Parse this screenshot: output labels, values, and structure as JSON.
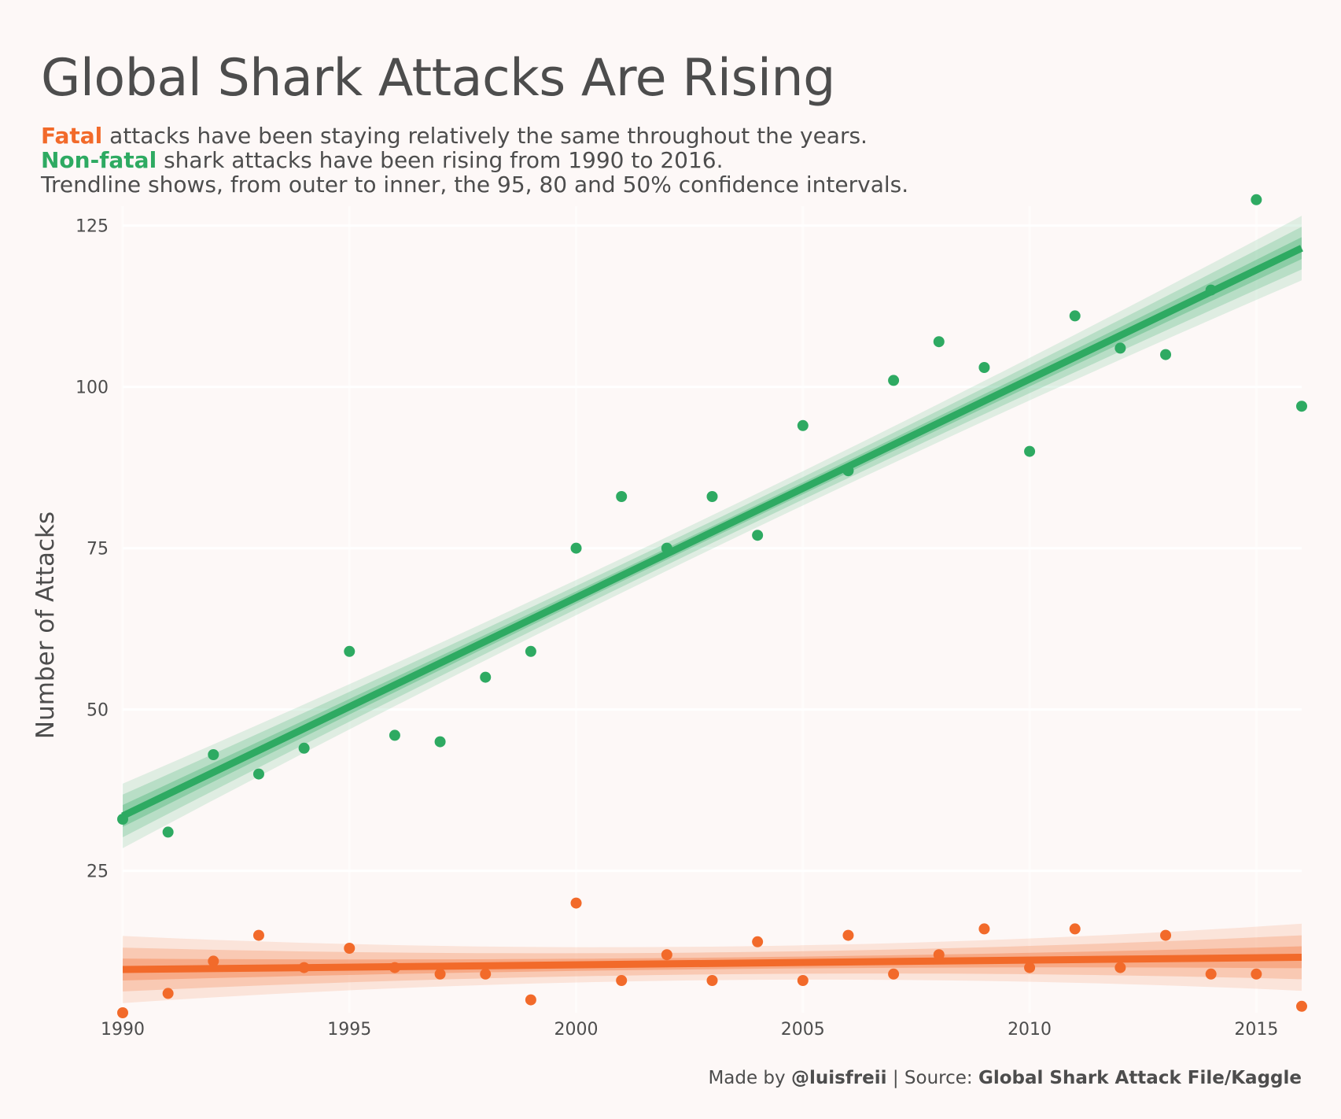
{
  "title": "Global Shark Attacks Are Rising",
  "subtitle": {
    "line1_highlight": "Fatal",
    "line1_rest": " attacks have been staying relatively the same throughout the years.",
    "line2_highlight": "Non-fatal",
    "line2_rest": " shark attacks have been rising from 1990 to 2016.",
    "line3": "Trendline shows, from outer to inner, the 95, 80 and 50% confidence intervals."
  },
  "caption": {
    "made_by_label": "Made by ",
    "author": "@luisfreii",
    "separator": " | Source: ",
    "source": "Global Shark Attack File/Kaggle"
  },
  "colors": {
    "background": "#fdf8f7",
    "fatal": "#f26a2a",
    "nonfatal": "#2eaa62",
    "text": "#4d4d4d",
    "grid": "#ffffff"
  },
  "chart_data": {
    "type": "scatter",
    "ylabel": "Number of Attacks",
    "xlabel": "",
    "xlim": [
      1990,
      2016
    ],
    "ylim": [
      3,
      128
    ],
    "x_ticks": [
      1990,
      1995,
      2000,
      2005,
      2010,
      2015
    ],
    "y_ticks": [
      25,
      50,
      75,
      100,
      125
    ],
    "grid": true,
    "legend": "none (colored subtitle words)",
    "x": [
      1990,
      1991,
      1992,
      1993,
      1994,
      1995,
      1996,
      1997,
      1998,
      1999,
      2000,
      2001,
      2002,
      2003,
      2004,
      2005,
      2006,
      2007,
      2008,
      2009,
      2010,
      2011,
      2012,
      2013,
      2014,
      2015,
      2016
    ],
    "series": [
      {
        "name": "Non-fatal",
        "values": [
          33,
          31,
          43,
          40,
          44,
          59,
          46,
          45,
          55,
          59,
          75,
          83,
          75,
          83,
          77,
          94,
          87,
          101,
          107,
          103,
          90,
          111,
          106,
          105,
          115,
          129,
          97
        ],
        "trend": {
          "start": 33.5,
          "end": 121.5
        },
        "intervals": [
          {
            "level": "95%",
            "start_halfwidth": 5.0,
            "mid_halfwidth": 2.6,
            "end_halfwidth": 5.0
          },
          {
            "level": "80%",
            "start_halfwidth": 3.3,
            "mid_halfwidth": 1.7,
            "end_halfwidth": 3.3
          },
          {
            "level": "50%",
            "start_halfwidth": 1.7,
            "mid_halfwidth": 0.9,
            "end_halfwidth": 1.7
          }
        ]
      },
      {
        "name": "Fatal",
        "values": [
          3,
          6,
          11,
          15,
          10,
          13,
          10,
          9,
          9,
          5,
          20,
          8,
          12,
          8,
          14,
          8,
          15,
          9,
          12,
          16,
          10,
          16,
          10,
          15,
          9,
          9,
          4
        ],
        "trend": {
          "start": 9.7,
          "end": 11.6
        },
        "intervals": [
          {
            "level": "95%",
            "start_halfwidth": 5.2,
            "mid_halfwidth": 2.6,
            "end_halfwidth": 5.2
          },
          {
            "level": "80%",
            "start_halfwidth": 3.4,
            "mid_halfwidth": 1.7,
            "end_halfwidth": 3.4
          },
          {
            "level": "50%",
            "start_halfwidth": 1.7,
            "mid_halfwidth": 0.9,
            "end_halfwidth": 1.7
          }
        ]
      }
    ]
  }
}
